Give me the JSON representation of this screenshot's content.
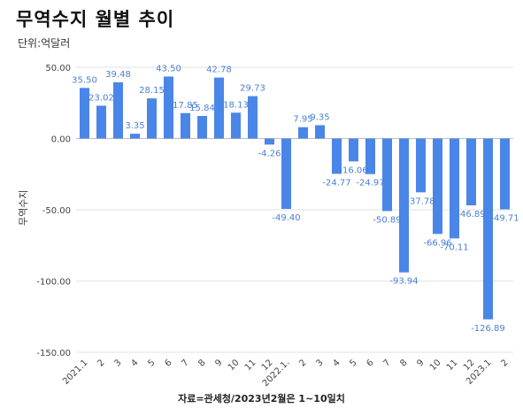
{
  "title": "무역수지 월별 추이",
  "unit": "단위:억달러",
  "footer": "자료=관세청/2023년2월은 1~10일치",
  "chart_data": {
    "type": "bar",
    "ylabel": "무역수지",
    "ylim": [
      -150,
      50
    ],
    "yticks": [
      50,
      0,
      -50,
      -100,
      -150
    ],
    "ytick_labels": [
      "50.00",
      "0.00",
      "-50.00",
      "-100.00",
      "-150.00"
    ],
    "grid": true,
    "bar_color": "#4a86e8",
    "label_color": "#4a7fd4",
    "categories": [
      "2021.1",
      "2",
      "3",
      "4",
      "5",
      "6",
      "7",
      "8",
      "9",
      "10",
      "11",
      "12",
      "2022.1.",
      "2",
      "3",
      "4",
      "5",
      "6",
      "7",
      "8",
      "9",
      "10",
      "11",
      "12",
      "2023.1",
      "2"
    ],
    "values": [
      35.5,
      23.02,
      39.48,
      3.35,
      28.15,
      43.5,
      17.85,
      15.84,
      42.78,
      18.13,
      29.73,
      -4.26,
      -49.4,
      7.95,
      9.35,
      -24.77,
      -16.06,
      -24.97,
      -50.89,
      -93.94,
      -37.78,
      -66.96,
      -70.11,
      -46.89,
      -126.89,
      -49.71
    ],
    "data_labels": [
      "35.50",
      "23.02",
      "39.48",
      "3.35",
      "28.15",
      "43.50",
      "17.85",
      "15.84",
      "42.78",
      "18.13",
      "29.73",
      "-4.26",
      "-49.40",
      "7.95",
      "9.35",
      "-24.77",
      "-16.06",
      "-24.97",
      "-50.89",
      "-93.94",
      "-37.78",
      "-66.96",
      "-70.11",
      "-46.89",
      "-126.89",
      "-49.71"
    ]
  }
}
